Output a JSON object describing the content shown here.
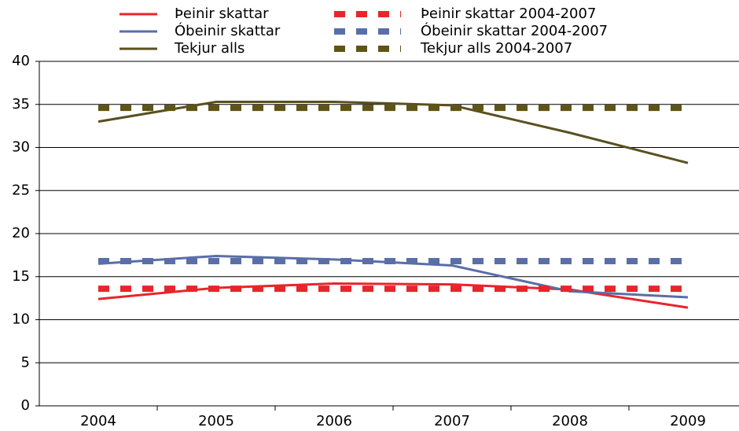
{
  "chart_data": {
    "type": "line",
    "categories": [
      "2004",
      "2005",
      "2006",
      "2007",
      "2008",
      "2009"
    ],
    "series": [
      {
        "name": "Þeinir skattar",
        "color": "#e8252b",
        "dashed": false,
        "values": [
          12.4,
          13.7,
          14.2,
          14.1,
          13.5,
          11.4
        ]
      },
      {
        "name": "Óbeinir skattar",
        "color": "#5a6ea8",
        "dashed": false,
        "values": [
          16.5,
          17.4,
          17.0,
          16.3,
          13.3,
          12.6
        ]
      },
      {
        "name": "Tekjur alls",
        "color": "#5a5020",
        "dashed": false,
        "values": [
          33.0,
          35.3,
          35.3,
          34.9,
          31.7,
          28.2
        ]
      },
      {
        "name": "Þeinir skattar 2004-2007",
        "color": "#e8252b",
        "dashed": true,
        "values": [
          13.6,
          13.6,
          13.6,
          13.6,
          13.6,
          13.6
        ]
      },
      {
        "name": "Óbeinir skattar 2004-2007",
        "color": "#5a6ea8",
        "dashed": true,
        "values": [
          16.8,
          16.8,
          16.8,
          16.8,
          16.8,
          16.8
        ]
      },
      {
        "name": "Tekjur alls 2004-2007",
        "color": "#5f5417",
        "dashed": true,
        "values": [
          34.6,
          34.6,
          34.6,
          34.6,
          34.6,
          34.6
        ]
      }
    ],
    "ylim": [
      0,
      40
    ],
    "yticks": [
      0,
      5,
      10,
      15,
      20,
      25,
      30,
      35,
      40
    ],
    "grid": true
  }
}
